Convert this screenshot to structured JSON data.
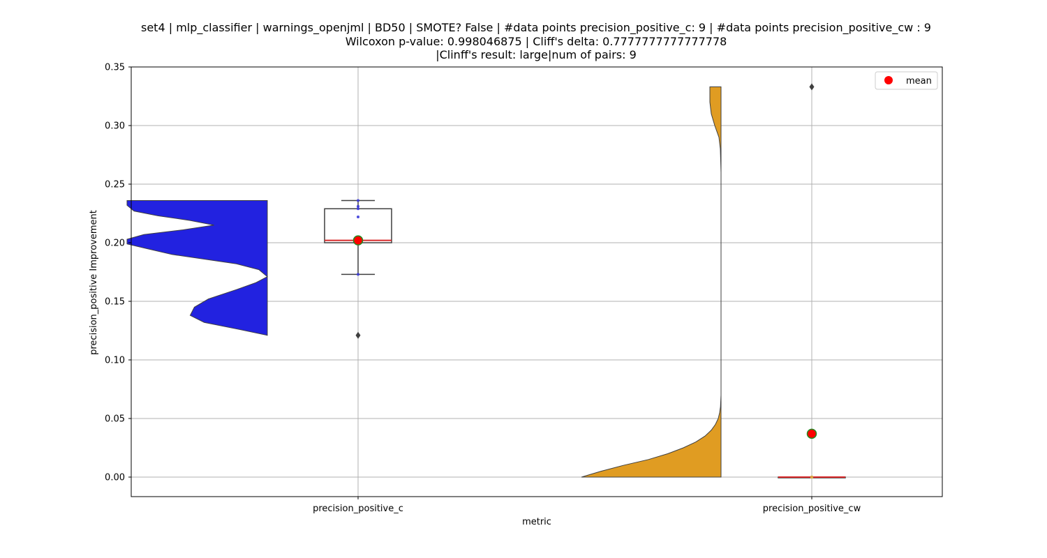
{
  "chart_data": {
    "type": "violin_box",
    "title_lines": [
      "set4 | mlp_classifier | warnings_openjml | BD50 | SMOTE? False | #data points precision_positive_c: 9 | #data points precision_positive_cw : 9",
      "Wilcoxon p-value: 0.998046875 | Cliff's delta: 0.7777777777777778",
      "|Clinff's result: large|num of pairs: 9"
    ],
    "xlabel": "metric",
    "ylabel": "precision_positive Improvement",
    "ylim": [
      -0.0165,
      0.35
    ],
    "yticks": [
      0.0,
      0.05,
      0.1,
      0.15,
      0.2,
      0.25,
      0.3,
      0.35
    ],
    "ytick_labels": [
      "0.00",
      "0.05",
      "0.10",
      "0.15",
      "0.20",
      "0.25",
      "0.30",
      "0.35"
    ],
    "categories": [
      "precision_positive_c",
      "precision_positive_cw"
    ],
    "grid": true,
    "legend": {
      "position": "top-right",
      "label": "mean"
    },
    "colors": {
      "c": "#2222e0",
      "cw": "#e09c22",
      "mean": "#ff0000",
      "median": "#d62728",
      "box_edge": "#3f3f3f",
      "mean_edge": "#228b22"
    },
    "series": [
      {
        "category": "precision_positive_c",
        "points": [
          0.121,
          0.173,
          0.2,
          0.202,
          0.2025,
          0.222,
          0.229,
          0.231,
          0.236
        ],
        "box": {
          "q1": 0.2,
          "median": 0.202,
          "q3": 0.229,
          "whisker_low": 0.173,
          "whisker_high": 0.236
        },
        "mean": 0.202,
        "outliers": [
          0.121
        ],
        "violin": {
          "side": "left",
          "ymin": 0.121,
          "ymax": 0.236,
          "profile": [
            [
              0.121,
              0.0
            ],
            [
              0.126,
              0.2
            ],
            [
              0.132,
              0.45
            ],
            [
              0.138,
              0.55
            ],
            [
              0.145,
              0.52
            ],
            [
              0.152,
              0.42
            ],
            [
              0.16,
              0.22
            ],
            [
              0.166,
              0.08
            ],
            [
              0.171,
              0.0
            ],
            [
              0.177,
              0.06
            ],
            [
              0.182,
              0.22
            ],
            [
              0.186,
              0.45
            ],
            [
              0.19,
              0.68
            ],
            [
              0.195,
              0.86
            ],
            [
              0.199,
              1.0
            ],
            [
              0.203,
              1.0
            ],
            [
              0.207,
              0.88
            ],
            [
              0.211,
              0.6
            ],
            [
              0.215,
              0.38
            ],
            [
              0.219,
              0.55
            ],
            [
              0.223,
              0.78
            ],
            [
              0.227,
              0.95
            ],
            [
              0.232,
              1.0
            ],
            [
              0.236,
              1.0
            ]
          ]
        }
      },
      {
        "category": "precision_positive_cw",
        "points": [
          0,
          0,
          0,
          0,
          0,
          0,
          0,
          0,
          0.333
        ],
        "box": {
          "q1": 0,
          "median": 0,
          "q3": 0,
          "whisker_low": 0,
          "whisker_high": 0
        },
        "mean": 0.037,
        "outliers": [
          0.333
        ],
        "violin": {
          "side": "left",
          "ymin": 0,
          "ymax": 0.333,
          "profile": [
            [
              0.0,
              1.0
            ],
            [
              0.005,
              0.86
            ],
            [
              0.01,
              0.7
            ],
            [
              0.015,
              0.52
            ],
            [
              0.02,
              0.38
            ],
            [
              0.025,
              0.27
            ],
            [
              0.03,
              0.18
            ],
            [
              0.035,
              0.115
            ],
            [
              0.04,
              0.07
            ],
            [
              0.045,
              0.04
            ],
            [
              0.05,
              0.02
            ],
            [
              0.055,
              0.01
            ],
            [
              0.06,
              0.004
            ],
            [
              0.07,
              0.0
            ],
            [
              0.26,
              0.0
            ],
            [
              0.28,
              0.005
            ],
            [
              0.29,
              0.015
            ],
            [
              0.3,
              0.045
            ],
            [
              0.31,
              0.07
            ],
            [
              0.32,
              0.08
            ],
            [
              0.333,
              0.08
            ]
          ]
        }
      }
    ]
  }
}
